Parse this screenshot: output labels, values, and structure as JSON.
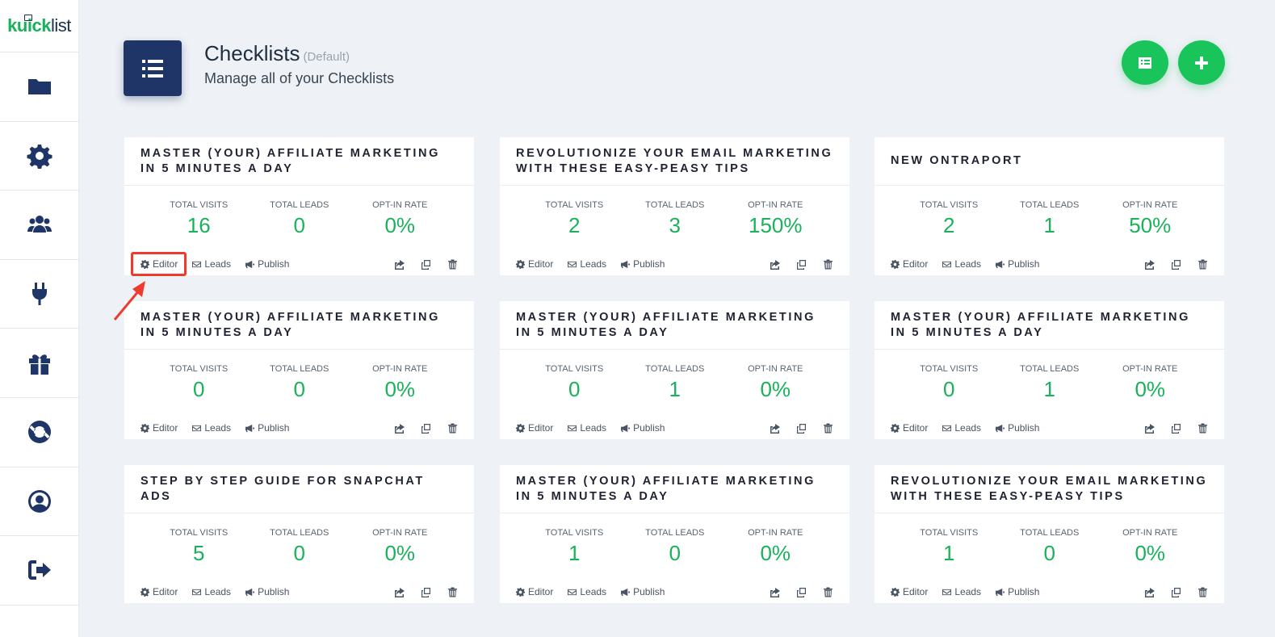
{
  "app": {
    "logo_text_1": "kuick",
    "logo_text_2": "list"
  },
  "sidebar": {
    "items": [
      {
        "icon": "folder-icon"
      },
      {
        "icon": "gear-icon"
      },
      {
        "icon": "users-icon"
      },
      {
        "icon": "plug-icon"
      },
      {
        "icon": "gift-icon"
      },
      {
        "icon": "lifebuoy-icon"
      },
      {
        "icon": "user-circle-icon"
      },
      {
        "icon": "sign-out-icon"
      }
    ]
  },
  "header": {
    "title": "Checklists",
    "title_badge": "(Default)",
    "subtitle": "Manage all of your Checklists"
  },
  "labels": {
    "visits": "TOTAL VISITS",
    "leads": "TOTAL LEADS",
    "rate": "OPT-IN RATE",
    "editor": "Editor",
    "leads_action": "Leads",
    "publish": "Publish"
  },
  "cards": [
    {
      "title": "MASTER (YOUR) AFFILIATE MARKETING IN 5 MINUTES A DAY",
      "visits": "16",
      "leads": "0",
      "rate": "0%"
    },
    {
      "title": "REVOLUTIONIZE YOUR EMAIL MARKETING WITH THESE EASY-PEASY TIPS",
      "visits": "2",
      "leads": "3",
      "rate": "150%"
    },
    {
      "title": "NEW ONTRAPORT",
      "visits": "2",
      "leads": "1",
      "rate": "50%"
    },
    {
      "title": "MASTER (YOUR) AFFILIATE MARKETING IN 5 MINUTES A DAY",
      "visits": "0",
      "leads": "0",
      "rate": "0%"
    },
    {
      "title": "MASTER (YOUR) AFFILIATE MARKETING IN 5 MINUTES A DAY",
      "visits": "0",
      "leads": "1",
      "rate": "0%"
    },
    {
      "title": "MASTER (YOUR) AFFILIATE MARKETING IN 5 MINUTES A DAY",
      "visits": "0",
      "leads": "1",
      "rate": "0%"
    },
    {
      "title": "STEP BY STEP GUIDE FOR SNAPCHAT ADS",
      "visits": "5",
      "leads": "0",
      "rate": "0%"
    },
    {
      "title": "MASTER (YOUR) AFFILIATE MARKETING IN 5 MINUTES A DAY",
      "visits": "1",
      "leads": "0",
      "rate": "0%"
    },
    {
      "title": "REVOLUTIONIZE YOUR EMAIL MARKETING WITH THESE EASY-PEASY TIPS",
      "visits": "1",
      "leads": "0",
      "rate": "0%"
    }
  ],
  "colors": {
    "accent": "#19c45a",
    "primary": "#1f3467",
    "highlight": "#ee3b2e"
  }
}
